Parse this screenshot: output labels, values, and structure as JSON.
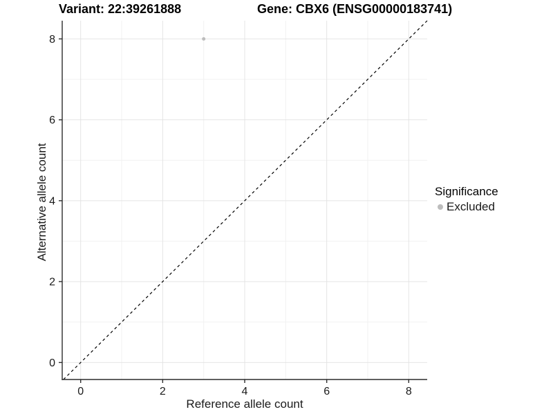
{
  "header": {
    "variant_title": "Variant: 22:39261888",
    "gene_title": "Gene: CBX6 (ENSG00000183741)"
  },
  "axes": {
    "x_label": "Reference allele count",
    "y_label": "Alternative allele count"
  },
  "legend": {
    "title": "Significance",
    "items": [
      {
        "label": "Excluded",
        "color": "#bdbdbd",
        "marker": "circle"
      }
    ]
  },
  "colors": {
    "background": "#ffffff",
    "grid_major": "#e4e4e4",
    "grid_minor": "#f1f1f1",
    "axis_line": "#2b2b2b",
    "tick_mark": "#2b2b2b",
    "tick_label": "#1a1a1a",
    "identity_line": "#000000",
    "point_excluded": "#bdbdbd"
  },
  "chart_data": {
    "type": "scatter",
    "title": "Variant: 22:39261888   Gene: CBX6 (ENSG00000183741)",
    "xlabel": "Reference allele count",
    "ylabel": "Alternative allele count",
    "xlim": [
      -0.45,
      8.45
    ],
    "ylim": [
      -0.42,
      8.45
    ],
    "x_major_ticks": [
      0,
      2,
      4,
      6,
      8
    ],
    "y_major_ticks": [
      0,
      2,
      4,
      6,
      8
    ],
    "x_minor_ticks": [
      1,
      3,
      5,
      7
    ],
    "y_minor_ticks": [
      1,
      3,
      5,
      7
    ],
    "grid": true,
    "legend_position": "right",
    "series": [
      {
        "name": "Excluded",
        "color": "#bdbdbd",
        "marker_radius": 2.5,
        "points": [
          {
            "x": 3,
            "y": 8
          }
        ]
      }
    ],
    "reference_line": {
      "type": "identity",
      "slope": 1,
      "intercept": 0,
      "style": "dashed",
      "color": "#000000"
    }
  }
}
